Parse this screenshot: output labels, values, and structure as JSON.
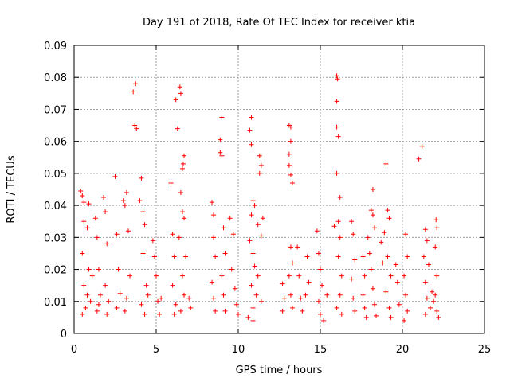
{
  "chart_data": {
    "type": "scatter",
    "title": "Day 191 of 2018, Rate Of TEC Index for receiver ktia",
    "xlabel": "GPS time / hours",
    "ylabel": "ROTI / TECUs",
    "xlim": [
      0,
      25
    ],
    "ylim": [
      0,
      0.09
    ],
    "x_ticks": [
      0,
      5,
      10,
      15,
      20,
      25
    ],
    "x_tick_labels": [
      "0",
      "5",
      "10",
      "15",
      "20",
      "25"
    ],
    "y_ticks": [
      0,
      0.01,
      0.02,
      0.03,
      0.04,
      0.05,
      0.06,
      0.07,
      0.08,
      0.09
    ],
    "y_tick_labels": [
      "0",
      "0.01",
      "0.02",
      "0.03",
      "0.04",
      "0.05",
      "0.06",
      "0.07",
      "0.08",
      "0.09"
    ],
    "grid": true,
    "marker": "+",
    "color": "#ff0000",
    "series": [
      {
        "name": "ROTI",
        "points": [
          [
            0.4,
            0.0445
          ],
          [
            0.5,
            0.043
          ],
          [
            0.6,
            0.041
          ],
          [
            0.9,
            0.0405
          ],
          [
            0.6,
            0.035
          ],
          [
            0.8,
            0.033
          ],
          [
            0.5,
            0.025
          ],
          [
            0.6,
            0.015
          ],
          [
            0.8,
            0.012
          ],
          [
            0.7,
            0.008
          ],
          [
            0.5,
            0.006
          ],
          [
            0.9,
            0.02
          ],
          [
            1.0,
            0.01
          ],
          [
            1.1,
            0.018
          ],
          [
            1.3,
            0.036
          ],
          [
            1.4,
            0.03
          ],
          [
            1.5,
            0.02
          ],
          [
            1.6,
            0.012
          ],
          [
            1.4,
            0.007
          ],
          [
            1.5,
            0.009
          ],
          [
            1.8,
            0.0425
          ],
          [
            1.9,
            0.038
          ],
          [
            2.0,
            0.028
          ],
          [
            1.9,
            0.015
          ],
          [
            2.1,
            0.01
          ],
          [
            2.0,
            0.006
          ],
          [
            2.5,
            0.049
          ],
          [
            2.6,
            0.031
          ],
          [
            2.7,
            0.02
          ],
          [
            2.8,
            0.0125
          ],
          [
            2.6,
            0.008
          ],
          [
            3.0,
            0.0415
          ],
          [
            3.1,
            0.04
          ],
          [
            3.2,
            0.044
          ],
          [
            3.3,
            0.032
          ],
          [
            3.4,
            0.018
          ],
          [
            3.2,
            0.011
          ],
          [
            3.1,
            0.007
          ],
          [
            3.6,
            0.0755
          ],
          [
            3.75,
            0.078
          ],
          [
            3.7,
            0.065
          ],
          [
            3.8,
            0.064
          ],
          [
            4.1,
            0.0485
          ],
          [
            4.2,
            0.038
          ],
          [
            4.0,
            0.0415
          ],
          [
            4.3,
            0.034
          ],
          [
            4.2,
            0.025
          ],
          [
            4.4,
            0.015
          ],
          [
            4.1,
            0.009
          ],
          [
            4.3,
            0.006
          ],
          [
            4.5,
            0.012
          ],
          [
            4.8,
            0.029
          ],
          [
            4.9,
            0.024
          ],
          [
            5.0,
            0.018
          ],
          [
            5.1,
            0.01
          ],
          [
            5.2,
            0.006
          ],
          [
            5.3,
            0.011
          ],
          [
            5.9,
            0.047
          ],
          [
            6.0,
            0.031
          ],
          [
            6.1,
            0.024
          ],
          [
            6.0,
            0.015
          ],
          [
            6.2,
            0.009
          ],
          [
            6.1,
            0.006
          ],
          [
            6.2,
            0.073
          ],
          [
            6.3,
            0.064
          ],
          [
            6.45,
            0.077
          ],
          [
            6.5,
            0.075
          ],
          [
            6.6,
            0.0515
          ],
          [
            6.65,
            0.053
          ],
          [
            6.7,
            0.0555
          ],
          [
            6.5,
            0.044
          ],
          [
            6.6,
            0.038
          ],
          [
            6.7,
            0.036
          ],
          [
            6.4,
            0.03
          ],
          [
            6.8,
            0.024
          ],
          [
            6.6,
            0.018
          ],
          [
            6.7,
            0.012
          ],
          [
            6.5,
            0.007
          ],
          [
            7.0,
            0.011
          ],
          [
            7.1,
            0.008
          ],
          [
            8.4,
            0.041
          ],
          [
            8.5,
            0.037
          ],
          [
            8.5,
            0.03
          ],
          [
            8.6,
            0.024
          ],
          [
            8.4,
            0.016
          ],
          [
            8.5,
            0.011
          ],
          [
            8.6,
            0.007
          ],
          [
            9.0,
            0.0675
          ],
          [
            8.9,
            0.0605
          ],
          [
            8.9,
            0.0565
          ],
          [
            9.0,
            0.0555
          ],
          [
            9.1,
            0.033
          ],
          [
            9.2,
            0.025
          ],
          [
            9.0,
            0.018
          ],
          [
            9.1,
            0.012
          ],
          [
            9.2,
            0.007
          ],
          [
            9.5,
            0.036
          ],
          [
            9.7,
            0.031
          ],
          [
            9.6,
            0.02
          ],
          [
            9.8,
            0.014
          ],
          [
            9.9,
            0.009
          ],
          [
            10.0,
            0.006
          ],
          [
            10.7,
            0.0635
          ],
          [
            10.8,
            0.059
          ],
          [
            10.8,
            0.0675
          ],
          [
            11.3,
            0.0555
          ],
          [
            11.4,
            0.0525
          ],
          [
            11.3,
            0.05
          ],
          [
            10.9,
            0.0415
          ],
          [
            11.0,
            0.04
          ],
          [
            10.8,
            0.037
          ],
          [
            11.2,
            0.034
          ],
          [
            11.4,
            0.0305
          ],
          [
            11.5,
            0.036
          ],
          [
            10.7,
            0.029
          ],
          [
            10.9,
            0.025
          ],
          [
            11.0,
            0.021
          ],
          [
            10.8,
            0.015
          ],
          [
            11.1,
            0.012
          ],
          [
            10.9,
            0.008
          ],
          [
            11.2,
            0.018
          ],
          [
            11.4,
            0.01
          ],
          [
            10.6,
            0.005
          ],
          [
            10.9,
            0.004
          ],
          [
            12.7,
            0.0155
          ],
          [
            12.8,
            0.011
          ],
          [
            12.7,
            0.007
          ],
          [
            13.1,
            0.065
          ],
          [
            13.2,
            0.0645
          ],
          [
            13.2,
            0.06
          ],
          [
            13.1,
            0.056
          ],
          [
            13.1,
            0.0525
          ],
          [
            13.2,
            0.0495
          ],
          [
            13.3,
            0.047
          ],
          [
            13.2,
            0.027
          ],
          [
            13.3,
            0.022
          ],
          [
            13.1,
            0.018
          ],
          [
            13.2,
            0.012
          ],
          [
            13.3,
            0.008
          ],
          [
            13.6,
            0.027
          ],
          [
            13.7,
            0.018
          ],
          [
            13.8,
            0.011
          ],
          [
            13.9,
            0.007
          ],
          [
            14.2,
            0.024
          ],
          [
            14.3,
            0.016
          ],
          [
            14.1,
            0.012
          ],
          [
            14.8,
            0.032
          ],
          [
            14.9,
            0.025
          ],
          [
            15.0,
            0.02
          ],
          [
            15.1,
            0.015
          ],
          [
            14.9,
            0.01
          ],
          [
            15.0,
            0.006
          ],
          [
            15.2,
            0.004
          ],
          [
            15.4,
            0.012
          ],
          [
            15.85,
            0.0335
          ],
          [
            16.0,
            0.0805
          ],
          [
            16.05,
            0.0795
          ],
          [
            16.0,
            0.0725
          ],
          [
            16.0,
            0.0645
          ],
          [
            16.1,
            0.0615
          ],
          [
            16.0,
            0.05
          ],
          [
            16.2,
            0.0425
          ],
          [
            16.1,
            0.035
          ],
          [
            16.2,
            0.03
          ],
          [
            16.1,
            0.024
          ],
          [
            16.3,
            0.018
          ],
          [
            16.2,
            0.012
          ],
          [
            16.0,
            0.008
          ],
          [
            16.3,
            0.006
          ],
          [
            16.9,
            0.035
          ],
          [
            17.0,
            0.031
          ],
          [
            17.1,
            0.023
          ],
          [
            16.9,
            0.017
          ],
          [
            17.0,
            0.011
          ],
          [
            17.1,
            0.007
          ],
          [
            17.6,
            0.024
          ],
          [
            17.7,
            0.018
          ],
          [
            17.6,
            0.012
          ],
          [
            17.7,
            0.008
          ],
          [
            17.8,
            0.005
          ],
          [
            17.9,
            0.03
          ],
          [
            18.0,
            0.025
          ],
          [
            18.1,
            0.0385
          ],
          [
            18.2,
            0.037
          ],
          [
            18.2,
            0.045
          ],
          [
            18.3,
            0.033
          ],
          [
            18.1,
            0.02
          ],
          [
            18.2,
            0.014
          ],
          [
            18.3,
            0.009
          ],
          [
            18.4,
            0.0055
          ],
          [
            18.7,
            0.0285
          ],
          [
            18.8,
            0.022
          ],
          [
            18.9,
            0.0315
          ],
          [
            19.0,
            0.053
          ],
          [
            19.1,
            0.0385
          ],
          [
            19.2,
            0.036
          ],
          [
            19.1,
            0.024
          ],
          [
            19.3,
            0.018
          ],
          [
            19.0,
            0.013
          ],
          [
            19.2,
            0.008
          ],
          [
            19.3,
            0.005
          ],
          [
            19.6,
            0.0215
          ],
          [
            19.7,
            0.016
          ],
          [
            19.8,
            0.009
          ],
          [
            20.2,
            0.031
          ],
          [
            20.3,
            0.024
          ],
          [
            20.1,
            0.018
          ],
          [
            20.2,
            0.012
          ],
          [
            20.3,
            0.007
          ],
          [
            20.1,
            0.004
          ],
          [
            21.0,
            0.0545
          ],
          [
            21.2,
            0.0585
          ],
          [
            21.4,
            0.0325
          ],
          [
            21.5,
            0.029
          ],
          [
            21.3,
            0.024
          ],
          [
            21.6,
            0.0215
          ],
          [
            21.4,
            0.016
          ],
          [
            21.5,
            0.011
          ],
          [
            21.7,
            0.008
          ],
          [
            21.4,
            0.006
          ],
          [
            21.8,
            0.013
          ],
          [
            21.9,
            0.01
          ],
          [
            22.05,
            0.0355
          ],
          [
            22.1,
            0.033
          ],
          [
            22.0,
            0.027
          ],
          [
            22.1,
            0.018
          ],
          [
            22.0,
            0.012
          ],
          [
            22.1,
            0.007
          ],
          [
            22.2,
            0.005
          ]
        ]
      }
    ]
  }
}
